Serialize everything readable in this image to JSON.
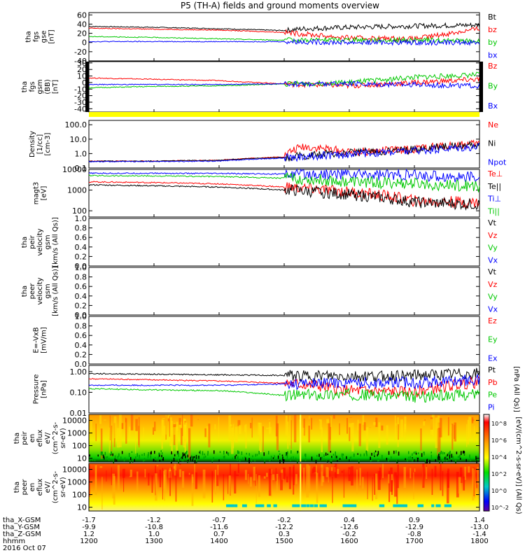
{
  "title": "P5 (TH-A) fields and ground moments overview",
  "colors": {
    "black": "#000000",
    "red": "#ff0000",
    "green": "#00c800",
    "blue": "#0000ff",
    "yellow": "#ffff00"
  },
  "chart_data": [
    {
      "type": "line",
      "panel": "fgs",
      "ylabel": [
        "tha",
        "fgs",
        "gse",
        "[nT]"
      ],
      "yticks": [
        "60",
        "40",
        "20",
        "0",
        "-20",
        "-40"
      ],
      "ylim": [
        -40,
        65
      ],
      "legend": [
        {
          "name": "Bt",
          "color": "black"
        },
        {
          "name": "bz",
          "color": "red"
        },
        {
          "name": "by",
          "color": "green"
        },
        {
          "name": "bx",
          "color": "blue"
        }
      ],
      "series": [
        {
          "name": "Bt",
          "color": "black",
          "x": [
            1200,
            1300,
            1400,
            1500,
            1530,
            1600,
            1700,
            1800
          ],
          "y": [
            35,
            33,
            30,
            26,
            30,
            33,
            36,
            38
          ]
        },
        {
          "name": "bz",
          "color": "red",
          "x": [
            1200,
            1300,
            1400,
            1500,
            1600,
            1700,
            1800
          ],
          "y": [
            31,
            29,
            27,
            22,
            10,
            8,
            30
          ]
        },
        {
          "name": "by",
          "color": "green",
          "x": [
            1200,
            1300,
            1400,
            1500,
            1600,
            1700,
            1800
          ],
          "y": [
            13,
            11,
            8,
            5,
            6,
            5,
            3
          ]
        },
        {
          "name": "bx",
          "color": "blue",
          "x": [
            1200,
            1300,
            1400,
            1500,
            1600,
            1700,
            1800
          ],
          "y": [
            2,
            2,
            2,
            2,
            0,
            0,
            0
          ]
        }
      ]
    },
    {
      "type": "line",
      "panel": "fgs_gsm",
      "ylabel": [
        "tha",
        "fgs",
        "gsm",
        "(BB)",
        "[nT]"
      ],
      "yticks": [
        "30",
        "20",
        "10",
        "0",
        "-10",
        "-20",
        "-30",
        "-40"
      ],
      "ylim": [
        -45,
        32
      ],
      "legend": [
        {
          "name": "Bz",
          "color": "red"
        },
        {
          "name": "By",
          "color": "green"
        },
        {
          "name": "Bx",
          "color": "blue"
        }
      ],
      "series": [
        {
          "name": "Bz",
          "color": "red",
          "x": [
            1200,
            1300,
            1400,
            1500,
            1600,
            1700,
            1800
          ],
          "y": [
            7,
            5,
            3,
            -2,
            -5,
            0,
            5
          ]
        },
        {
          "name": "By",
          "color": "green",
          "x": [
            1200,
            1300,
            1400,
            1500,
            1600,
            1700,
            1800
          ],
          "y": [
            -8,
            -6,
            -5,
            -2,
            0,
            8,
            12
          ]
        },
        {
          "name": "Bx",
          "color": "blue",
          "x": [
            1200,
            1300,
            1400,
            1500,
            1600,
            1700,
            1800
          ],
          "y": [
            -3,
            -3,
            -3,
            -2,
            -2,
            -3,
            -5
          ]
        }
      ]
    },
    {
      "type": "line",
      "panel": "density",
      "scale": "log",
      "ylabel": [
        "Density",
        "[1/cc]",
        "[cm-3]"
      ],
      "yticks": [
        "100.0",
        "10.0",
        "1.0",
        "0.1"
      ],
      "ylim": [
        0.1,
        200
      ],
      "legend": [
        {
          "name": "Ne",
          "color": "red"
        },
        {
          "name": "Ni",
          "color": "black"
        },
        {
          "name": "Npot",
          "color": "blue"
        }
      ],
      "series": [
        {
          "name": "Ne",
          "color": "red",
          "x": [
            1200,
            1300,
            1400,
            1500,
            1530,
            1600,
            1700,
            1800
          ],
          "y": [
            0.3,
            0.3,
            0.35,
            0.6,
            3,
            1.2,
            2,
            5
          ]
        },
        {
          "name": "Ni",
          "color": "black",
          "x": [
            1200,
            1300,
            1400,
            1500,
            1600,
            1700,
            1800
          ],
          "y": [
            0.3,
            0.3,
            0.35,
            0.55,
            1.1,
            1.8,
            4.5
          ]
        },
        {
          "name": "Npot",
          "color": "blue",
          "x": [
            1200,
            1300,
            1400,
            1500,
            1600,
            1700,
            1800
          ],
          "y": [
            0.28,
            0.28,
            0.3,
            0.5,
            0.9,
            1.5,
            3
          ]
        }
      ]
    },
    {
      "type": "line",
      "panel": "temperature",
      "scale": "log",
      "ylabel": [
        "magt3",
        "[eV]"
      ],
      "yticks": [
        "10000",
        "1000",
        "100"
      ],
      "ylim": [
        50,
        10000
      ],
      "legend": [
        {
          "name": "Te⊥",
          "color": "red"
        },
        {
          "name": "Te||",
          "color": "black"
        },
        {
          "name": "Ti⊥",
          "color": "blue"
        },
        {
          "name": "Ti||",
          "color": "green"
        }
      ],
      "series": [
        {
          "name": "Te⊥",
          "color": "red",
          "x": [
            1200,
            1300,
            1400,
            1500,
            1600,
            1700,
            1800
          ],
          "y": [
            2500,
            2300,
            2000,
            1400,
            800,
            300,
            250
          ]
        },
        {
          "name": "Te||",
          "color": "black",
          "x": [
            1200,
            1300,
            1400,
            1500,
            1600,
            1700,
            1800
          ],
          "y": [
            1800,
            1600,
            1400,
            1000,
            600,
            250,
            200
          ]
        },
        {
          "name": "Ti⊥",
          "color": "blue",
          "x": [
            1200,
            1300,
            1400,
            1500,
            1600,
            1700,
            1800
          ],
          "y": [
            6500,
            6500,
            6300,
            6000,
            6000,
            5000,
            4000
          ]
        },
        {
          "name": "Ti||",
          "color": "green",
          "x": [
            1200,
            1300,
            1400,
            1500,
            1600,
            1700,
            1800
          ],
          "y": [
            5000,
            4800,
            4500,
            3800,
            2500,
            2000,
            1500
          ]
        }
      ]
    },
    {
      "type": "line",
      "panel": "ion_velocity",
      "ylabel": [
        "tha",
        "peir",
        "velocity",
        "gsm",
        "[km/s (All Qs)]"
      ],
      "yticks": [
        "1.0",
        "0.8",
        "0.6",
        "0.4",
        "0.2",
        "0.0"
      ],
      "ylim": [
        0,
        1
      ],
      "legend": [
        {
          "name": "Vt",
          "color": "black"
        },
        {
          "name": "Vz",
          "color": "red"
        },
        {
          "name": "Vy",
          "color": "green"
        },
        {
          "name": "Vx",
          "color": "blue"
        }
      ],
      "series": []
    },
    {
      "type": "line",
      "panel": "electron_velocity",
      "ylabel": [
        "tha",
        "peer",
        "velocity",
        "gsm",
        "[km/s (All Qs)]"
      ],
      "yticks": [
        "1.0",
        "0.8",
        "0.6",
        "0.4",
        "0.2",
        "0.0"
      ],
      "ylim": [
        0,
        1
      ],
      "legend": [
        {
          "name": "Vt",
          "color": "black"
        },
        {
          "name": "Vz",
          "color": "red"
        },
        {
          "name": "Vy",
          "color": "green"
        },
        {
          "name": "Vx",
          "color": "blue"
        }
      ],
      "series": []
    },
    {
      "type": "line",
      "panel": "efield",
      "ylabel": [
        "E=-VxB",
        "[mV/m]"
      ],
      "yticks": [
        "1.0",
        "0.8",
        "0.6",
        "0.4",
        "0.2",
        "0.0"
      ],
      "ylim": [
        0,
        1
      ],
      "legend": [
        {
          "name": "Ez",
          "color": "red"
        },
        {
          "name": "Ey",
          "color": "green"
        },
        {
          "name": "Ex",
          "color": "blue"
        }
      ],
      "series": []
    },
    {
      "type": "line",
      "panel": "pressure",
      "scale": "log",
      "ylabel": [
        "Pressure",
        "[nPa]"
      ],
      "yticks": [
        "1.00",
        "0.10",
        "0.01"
      ],
      "ylim": [
        0.01,
        2
      ],
      "legend": [
        {
          "name": "Pt",
          "color": "black"
        },
        {
          "name": "Pb",
          "color": "red"
        },
        {
          "name": "Pe",
          "color": "green"
        },
        {
          "name": "Pi",
          "color": "blue"
        }
      ],
      "sidelabel": "[nPa (All Qs)]",
      "series": [
        {
          "name": "Pt",
          "color": "black",
          "x": [
            1200,
            1300,
            1400,
            1500,
            1600,
            1700,
            1800
          ],
          "y": [
            0.8,
            0.75,
            0.7,
            0.65,
            0.6,
            0.65,
            0.8
          ]
        },
        {
          "name": "Pb",
          "color": "red",
          "x": [
            1200,
            1300,
            1400,
            1500,
            1600,
            1700,
            1800
          ],
          "y": [
            0.45,
            0.4,
            0.35,
            0.28,
            0.12,
            0.1,
            0.3
          ]
        },
        {
          "name": "Pe",
          "color": "green",
          "x": [
            1200,
            1300,
            1400,
            1500,
            1600,
            1700,
            1800
          ],
          "y": [
            0.15,
            0.13,
            0.12,
            0.07,
            0.08,
            0.06,
            0.08
          ]
        },
        {
          "name": "Pi",
          "color": "blue",
          "x": [
            1200,
            1300,
            1400,
            1500,
            1600,
            1700,
            1800
          ],
          "y": [
            0.22,
            0.22,
            0.22,
            0.25,
            0.3,
            0.3,
            0.4
          ]
        }
      ]
    },
    {
      "type": "heatmap",
      "panel": "ion_spectrogram",
      "scale": "log",
      "ylabel": [
        "tha",
        "peir",
        "en",
        "eflux",
        "eV/",
        "(cm^2-s-",
        "sr-eV)"
      ],
      "yticks": [
        "10000",
        "1000",
        "100",
        "10"
      ],
      "ylim": [
        5,
        30000
      ]
    },
    {
      "type": "heatmap",
      "panel": "electron_spectrogram",
      "scale": "log",
      "ylabel": [
        "tha",
        "peer",
        "en",
        "eflux",
        "eV/",
        "(cm^2-s-",
        "sr-eV)"
      ],
      "yticks": [
        "10000",
        "1000",
        "100",
        "10"
      ],
      "ylim": [
        5,
        30000
      ]
    }
  ],
  "colorbar": {
    "label": "[eV/(cm^2-s-sr-eV)] (All Qs)",
    "ticks": [
      "10^8",
      "10^6",
      "10^4",
      "10^2",
      "10^0",
      "10^-2"
    ]
  },
  "ephemeris": {
    "labels": [
      "tha_X-GSM",
      "tha_Y-GSM",
      "tha_Z-GSM",
      "hhmm",
      "2016 Oct 07"
    ],
    "rows": [
      [
        "-1.7",
        "-1.2",
        "-0.7",
        "-0.2",
        "0.4",
        "0.9",
        "1.4"
      ],
      [
        "-9.9",
        "-10.8",
        "-11.6",
        "-12.2",
        "-12.6",
        "-12.9",
        "-13.0"
      ],
      [
        "1.2",
        "1.0",
        "0.7",
        "0.3",
        "-0.2",
        "-0.8",
        "-1.4"
      ],
      [
        "1200",
        "1300",
        "1400",
        "1500",
        "1600",
        "1700",
        "1800"
      ]
    ],
    "x_ticks": [
      1200,
      1300,
      1400,
      1500,
      1600,
      1700,
      1800
    ]
  }
}
